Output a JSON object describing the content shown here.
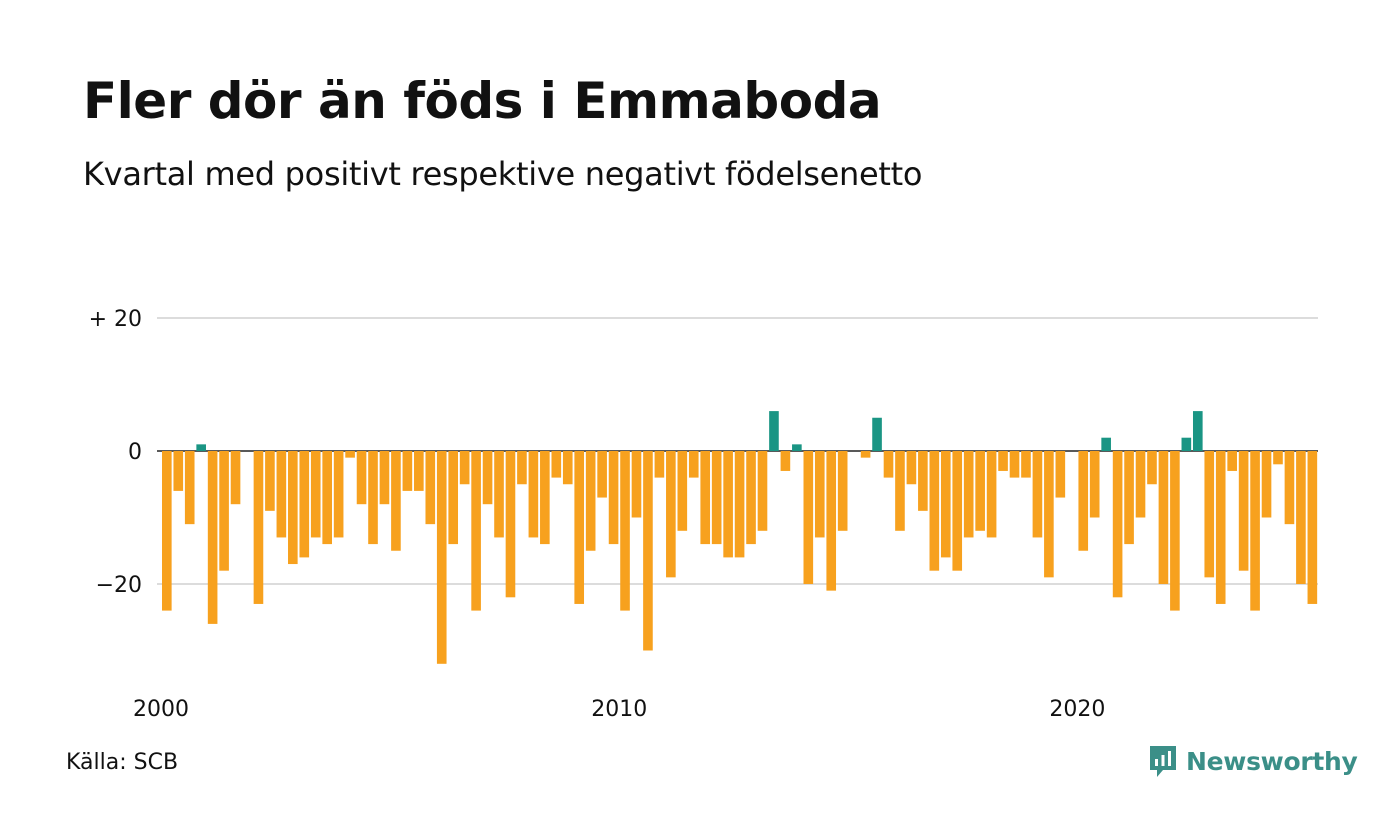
{
  "title": "Fler dör än föds i Emmaboda",
  "subtitle": "Kvartal med positivt respektive negativt födelsenetto",
  "source": "Källa: SCB",
  "brand": "Newsworthy",
  "colors": {
    "negative": "#f7a11e",
    "positive": "#1a9584",
    "brand": "#3b8f88",
    "grid": "#dcdcdc",
    "zero": "#222222"
  },
  "chart_data": {
    "type": "bar",
    "title": "Fler dör än föds i Emmaboda",
    "subtitle": "Kvartal med positivt respektive negativt födelsenetto",
    "xlabel": "",
    "ylabel": "",
    "ylim": [
      -33,
      20
    ],
    "grid": true,
    "y_ticks": [
      {
        "value": 20,
        "label": "+ 20"
      },
      {
        "value": 0,
        "label": "0"
      },
      {
        "value": -20,
        "label": "−20"
      }
    ],
    "x_ticks": [
      {
        "index": 0,
        "label": "2000"
      },
      {
        "index": 40,
        "label": "2010"
      },
      {
        "index": 80,
        "label": "2020"
      }
    ],
    "start": "2000 Q1",
    "frequency": "quarterly",
    "values": [
      -24,
      -6,
      -11,
      1,
      -26,
      -18,
      -8,
      0,
      -23,
      -9,
      -13,
      -17,
      -16,
      -13,
      -14,
      -13,
      -1,
      -8,
      -14,
      -8,
      -15,
      -6,
      -6,
      -11,
      -32,
      -14,
      -5,
      -24,
      -8,
      -13,
      -22,
      -5,
      -13,
      -14,
      -4,
      -5,
      -23,
      -15,
      -7,
      -14,
      -24,
      -10,
      -30,
      -4,
      -19,
      -12,
      -4,
      -14,
      -14,
      -16,
      -16,
      -14,
      -12,
      6,
      -3,
      1,
      -20,
      -13,
      -21,
      -12,
      0,
      -1,
      5,
      -4,
      -12,
      -5,
      -9,
      -18,
      -16,
      -18,
      -13,
      -12,
      -13,
      -3,
      -4,
      -4,
      -13,
      -19,
      -7,
      0,
      -15,
      -10,
      2,
      -22,
      -14,
      -10,
      -5,
      -20,
      -24,
      2,
      6,
      -19,
      -23,
      -3,
      -18,
      -24,
      -10,
      -2,
      -11,
      -20,
      -23
    ]
  }
}
